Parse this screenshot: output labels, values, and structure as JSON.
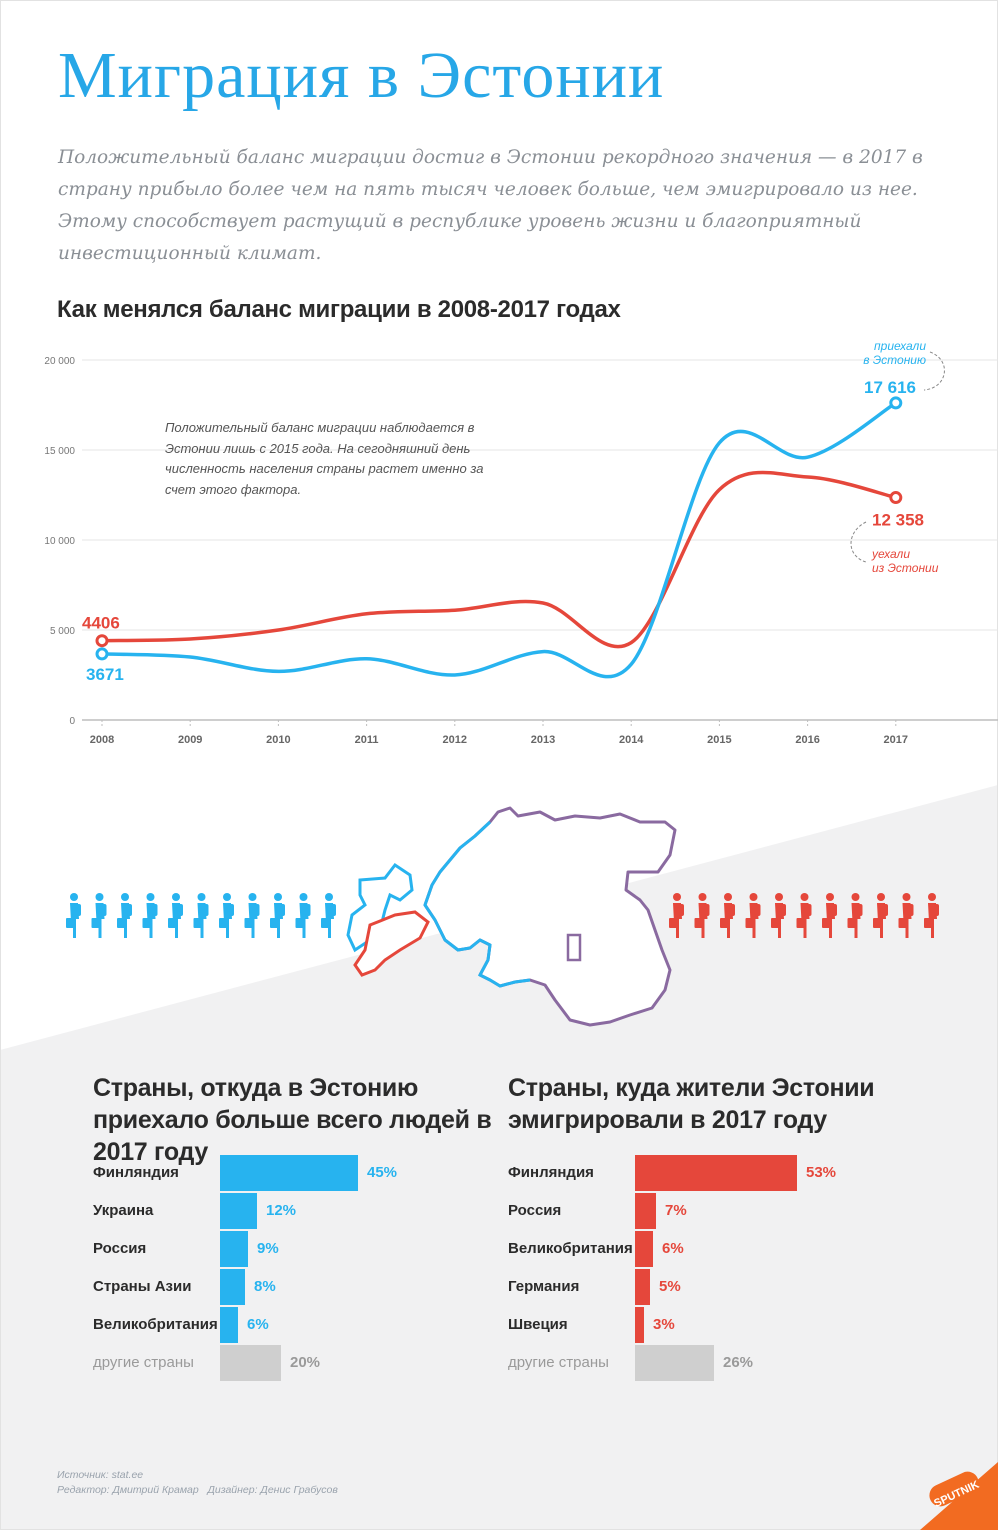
{
  "title": "Миграция в Эстонии",
  "lead": "Положительный баланс миграции достиг в Эстонии рекордного значения — в 2017 в страну прибыло более чем на пять тысяч человек больше, чем эмигрировало из нее. Этому способствует растущий в республике уровень жизни и благоприятный инвестиционный климат.",
  "colors": {
    "arrived": "#27b3ef",
    "left": "#e5473b",
    "other": "#cfcfcf",
    "title": "#27a7e7"
  },
  "chart_data": {
    "type": "line",
    "title": "Как менялся баланс миграции в 2008-2017 годах",
    "x": [
      "2008",
      "2009",
      "2010",
      "2011",
      "2012",
      "2013",
      "2014",
      "2015",
      "2016",
      "2017"
    ],
    "y_ticks": [
      "0",
      "5 000",
      "10 000",
      "15 000",
      "20 000"
    ],
    "ylim": [
      0,
      20000
    ],
    "grid": true,
    "series": [
      {
        "name": "приехали в Эстонию",
        "color": "#27b3ef",
        "values": [
          3671,
          3500,
          2700,
          3400,
          2500,
          3800,
          3100,
          15400,
          14600,
          17616
        ]
      },
      {
        "name": "уехали из Эстонии",
        "color": "#e5473b",
        "values": [
          4406,
          4500,
          5000,
          5900,
          6100,
          6500,
          4300,
          12800,
          13500,
          12358
        ]
      }
    ],
    "labels": {
      "arrived_start": "3671",
      "left_start": "4406",
      "arrived_end": "17 616",
      "left_end": "12 358"
    },
    "annotation": "Положительный баланс миграции наблюдается в Эстонии лишь с 2015 года. На сегодняшний день численность населения страны растет именно за счет этого фактора.",
    "legend_arrived": "приехали в Эстонию",
    "legend_left": "уехали из Эстонии"
  },
  "arrived_section": {
    "title": "Страны, откуда в Эстонию приехало больше всего людей в 2017 году",
    "rows": [
      {
        "label": "Финляндия",
        "value": 45,
        "text": "45%"
      },
      {
        "label": "Украина",
        "value": 12,
        "text": "12%"
      },
      {
        "label": "Россия",
        "value": 9,
        "text": "9%"
      },
      {
        "label": "Страны Азии",
        "value": 8,
        "text": "8%"
      },
      {
        "label": "Великобритания",
        "value": 6,
        "text": "6%"
      },
      {
        "label": "другие страны",
        "value": 20,
        "text": "20%"
      }
    ]
  },
  "left_section": {
    "title": "Страны, куда жители Эстонии эмигрировали в 2017 году",
    "rows": [
      {
        "label": "Финляндия",
        "value": 53,
        "text": "53%"
      },
      {
        "label": "Россия",
        "value": 7,
        "text": "7%"
      },
      {
        "label": "Великобритания",
        "value": 6,
        "text": "6%"
      },
      {
        "label": "Германия",
        "value": 5,
        "text": "5%"
      },
      {
        "label": "Швеция",
        "value": 3,
        "text": "3%"
      },
      {
        "label": "другие страны",
        "value": 26,
        "text": "26%"
      }
    ]
  },
  "footer": {
    "source": "Источник: stat.ee",
    "credits": "Редактор: Дмитрий Крамар   Дизайнер: Денис Грабусов"
  },
  "logo": "SPUTNIK",
  "people_count": 11
}
